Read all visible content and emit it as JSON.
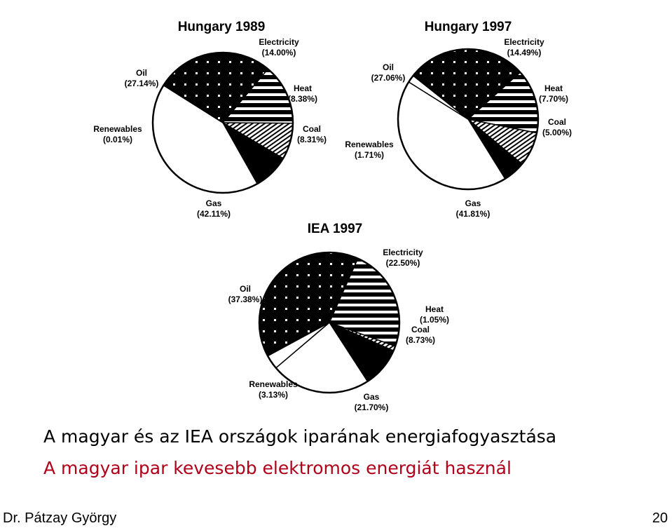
{
  "slide": {
    "caption_line1": "A magyar és az IEA országok iparának energiafogyasztása",
    "caption_line2": "A magyar ipar kevesebb elektromos energiát használ",
    "author": "Dr. Pátzay György",
    "page_number": "20"
  },
  "chart_data": [
    {
      "type": "pie",
      "title": "Hungary 1989",
      "slices": [
        {
          "label": "Electricity",
          "value": 14.0,
          "display": "(14.00%)",
          "pattern": "stripes"
        },
        {
          "label": "Heat",
          "value": 8.38,
          "display": "(8.38%)",
          "pattern": "diagonal"
        },
        {
          "label": "Coal",
          "value": 8.31,
          "display": "(8.31%)",
          "pattern": "solid"
        },
        {
          "label": "Gas",
          "value": 42.11,
          "display": "(42.11%)",
          "pattern": "white"
        },
        {
          "label": "Renewables",
          "value": 0.01,
          "display": "(0.01%)",
          "pattern": "white"
        },
        {
          "label": "Oil",
          "value": 27.14,
          "display": "(27.14%)",
          "pattern": "dots"
        }
      ]
    },
    {
      "type": "pie",
      "title": "Hungary 1997",
      "slices": [
        {
          "label": "Electricity",
          "value": 14.49,
          "display": "(14.49%)",
          "pattern": "stripes"
        },
        {
          "label": "Heat",
          "value": 7.7,
          "display": "(7.70%)",
          "pattern": "diagonal"
        },
        {
          "label": "Coal",
          "value": 5.0,
          "display": "(5.00%)",
          "pattern": "solid"
        },
        {
          "label": "Gas",
          "value": 41.81,
          "display": "(41.81%)",
          "pattern": "white"
        },
        {
          "label": "Renewables",
          "value": 1.71,
          "display": "(1.71%)",
          "pattern": "white"
        },
        {
          "label": "Oil",
          "value": 27.06,
          "display": "(27.06%)",
          "pattern": "dots"
        }
      ]
    },
    {
      "type": "pie",
      "title": "IEA 1997",
      "slices": [
        {
          "label": "Electricity",
          "value": 22.5,
          "display": "(22.50%)",
          "pattern": "stripes"
        },
        {
          "label": "Heat",
          "value": 1.05,
          "display": "(1.05%)",
          "pattern": "diagonal"
        },
        {
          "label": "Coal",
          "value": 8.73,
          "display": "(8.73%)",
          "pattern": "solid"
        },
        {
          "label": "Gas",
          "value": 21.7,
          "display": "(21.70%)",
          "pattern": "white"
        },
        {
          "label": "Renewables",
          "value": 3.13,
          "display": "(3.13%)",
          "pattern": "white"
        },
        {
          "label": "Oil",
          "value": 37.38,
          "display": "(37.38%)",
          "pattern": "dots"
        }
      ]
    }
  ]
}
